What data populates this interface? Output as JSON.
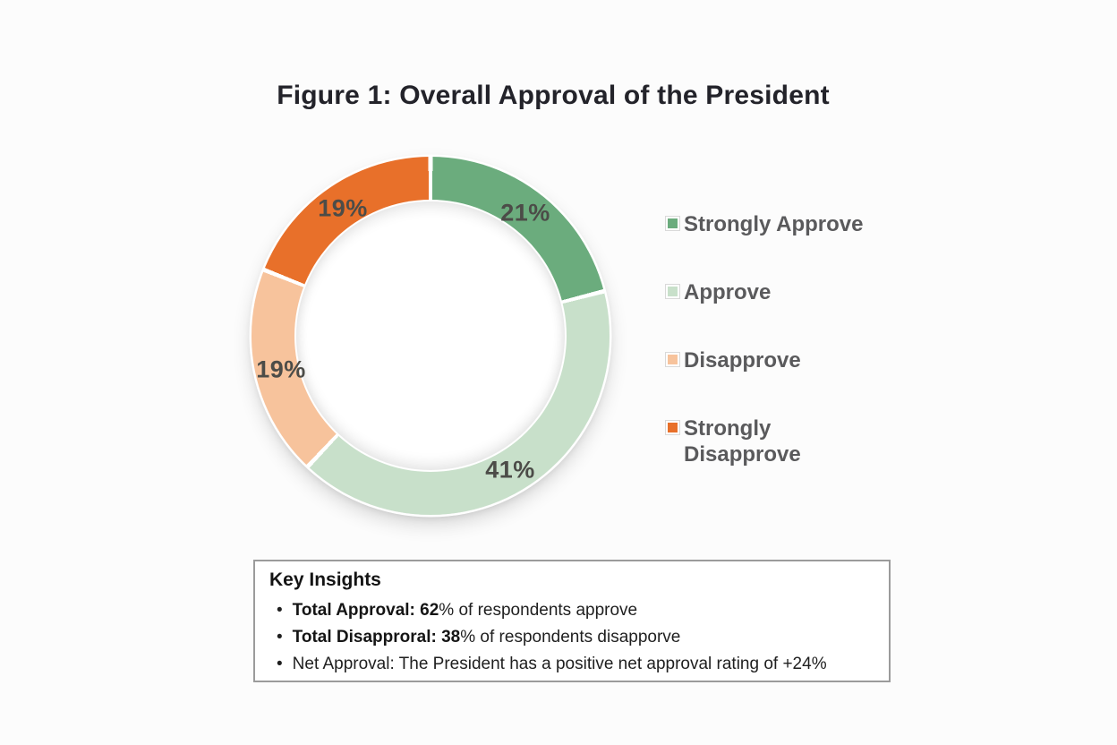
{
  "title": "Figure 1: Overall Approval of the President",
  "chart_data": {
    "type": "pie",
    "subtype": "donut",
    "title": "Figure 1: Overall Approval of the President",
    "categories": [
      "Strongly Approve",
      "Approve",
      "Disapprove",
      "Strongly Disapprove"
    ],
    "values": [
      21,
      41,
      19,
      19
    ],
    "unit": "%",
    "slice_labels": [
      "21%",
      "41%",
      "19%",
      "19%"
    ],
    "colors": [
      "#6bac7d",
      "#c8e0ca",
      "#f7c39c",
      "#e8702a"
    ],
    "start_angle_deg": 0,
    "direction": "clockwise",
    "legend_position": "right",
    "donut_hole": true,
    "separator_color": "#ffffff"
  },
  "legend": {
    "items": [
      {
        "label": "Strongly Approve",
        "color": "#6bac7d"
      },
      {
        "label": "Approve",
        "color": "#c8e0ca"
      },
      {
        "label": "Disapprove",
        "color": "#f7c39c"
      },
      {
        "label": "Strongly Disapprove",
        "color": "#e8702a"
      }
    ]
  },
  "insights": {
    "heading": "Key Insights",
    "bullet_glyph": "•",
    "bullets": [
      {
        "bold": "Total Approval: 62",
        "rest": "% of respondents approve"
      },
      {
        "bold": "Total Disapproral: 38",
        "rest": "% of respondents disapporve"
      },
      {
        "bold": "",
        "rest": "Net Approval: The President has a positive net approval rating of +24%"
      }
    ]
  }
}
